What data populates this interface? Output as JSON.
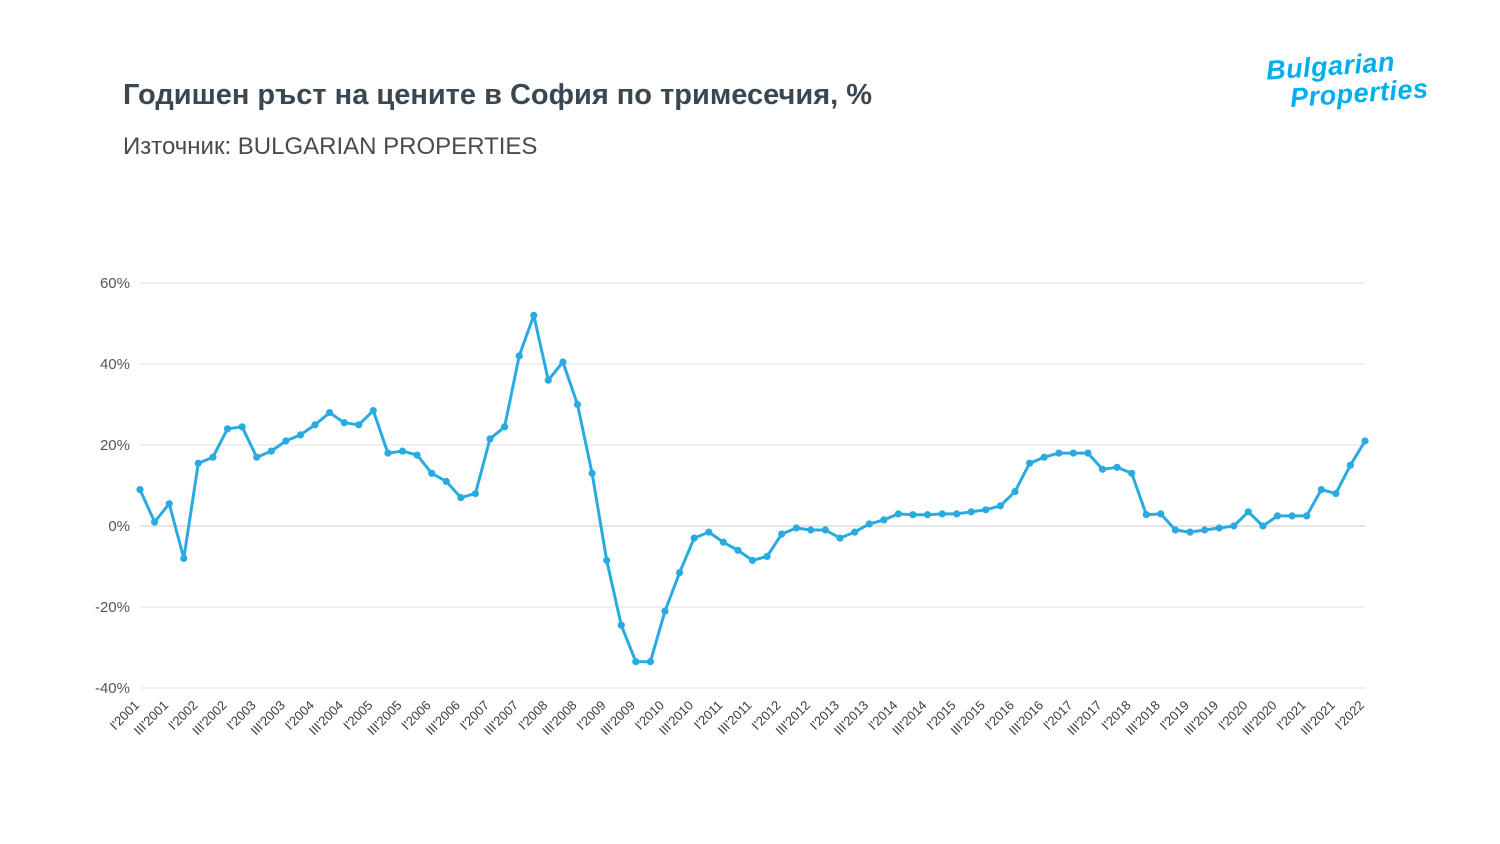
{
  "header": {
    "title": "Годишен ръст на цените в София по тримесечия, %",
    "subtitle": "Източник: BULGARIAN PROPERTIES"
  },
  "logo": {
    "line1": "Bulgarian",
    "line2": "Properties",
    "color": "#00aeef"
  },
  "chart_data": {
    "type": "line",
    "title": "Годишен ръст на цените в София по тримесечия, %",
    "source": "Източник: BULGARIAN PROPERTIES",
    "ylabel": "",
    "xlabel": "",
    "ylim": [
      -40,
      60
    ],
    "ytick_step": 20,
    "ytick_suffix": "%",
    "grid": true,
    "legend": "none",
    "line_color": "#29abe2",
    "grid_color": "#e2e2e2",
    "zero_line_color": "#c9c9c9",
    "marker": "circle",
    "tick_every": 2,
    "categories": [
      "I'2001",
      "II'2001",
      "III'2001",
      "IV'2001",
      "I'2002",
      "II'2002",
      "III'2002",
      "IV'2002",
      "I'2003",
      "II'2003",
      "III'2003",
      "IV'2003",
      "I'2004",
      "II'2004",
      "III'2004",
      "IV'2004",
      "I'2005",
      "II'2005",
      "III'2005",
      "IV'2005",
      "I'2006",
      "II'2006",
      "III'2006",
      "IV'2006",
      "I'2007",
      "II'2007",
      "III'2007",
      "IV'2007",
      "I'2008",
      "II'2008",
      "III'2008",
      "IV'2008",
      "I'2009",
      "II'2009",
      "III'2009",
      "IV'2009",
      "I'2010",
      "II'2010",
      "III'2010",
      "IV'2010",
      "I'2011",
      "II'2011",
      "III'2011",
      "IV'2011",
      "I'2012",
      "II'2012",
      "III'2012",
      "IV'2012",
      "I'2013",
      "II'2013",
      "III'2013",
      "IV'2013",
      "I'2014",
      "II'2014",
      "III'2014",
      "IV'2014",
      "I'2015",
      "II'2015",
      "III'2015",
      "IV'2015",
      "I'2016",
      "II'2016",
      "III'2016",
      "IV'2016",
      "I'2017",
      "II'2017",
      "III'2017",
      "IV'2017",
      "I'2018",
      "II'2018",
      "III'2018",
      "IV'2018",
      "I'2019",
      "II'2019",
      "III'2019",
      "IV'2019",
      "I'2020",
      "II'2020",
      "III'2020",
      "IV'2020",
      "I'2021",
      "II'2021",
      "III'2021",
      "IV'2021",
      "I'2022"
    ],
    "values": [
      9,
      1,
      5.5,
      -8,
      15.5,
      17,
      24,
      24.5,
      17,
      18.5,
      21,
      22.5,
      25,
      28,
      25.5,
      25,
      28.5,
      18,
      18.5,
      17.5,
      13,
      11,
      7,
      8,
      21.5,
      24.5,
      42,
      52,
      36,
      40.5,
      30,
      13,
      -8.5,
      -24.5,
      -33.5,
      -33.5,
      -21,
      -11.5,
      -3,
      -1.5,
      -4,
      -6,
      -8.5,
      -7.5,
      -2,
      -0.5,
      -1,
      -1,
      -3,
      -1.5,
      0.5,
      1.5,
      3,
      2.8,
      2.8,
      3,
      3,
      3.5,
      4,
      5,
      8.5,
      15.5,
      17,
      18,
      18,
      18,
      14,
      14.5,
      13,
      2.8,
      3,
      -1,
      -1.5,
      -1,
      -0.5,
      0,
      3.5,
      0,
      2.5,
      2.5,
      2.5,
      9,
      8,
      15,
      21
    ]
  }
}
